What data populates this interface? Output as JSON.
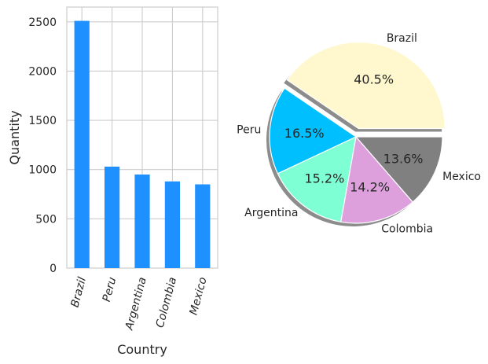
{
  "chart_data": [
    {
      "type": "bar",
      "categories": [
        "Brazil",
        "Peru",
        "Argentina",
        "Colombia",
        "Mexico"
      ],
      "values": [
        2510,
        1030,
        950,
        880,
        850
      ],
      "xlabel": "Country",
      "ylabel": "Quantity",
      "ylim": [
        0,
        2650
      ],
      "yticks": [
        0,
        500,
        1000,
        1500,
        2000,
        2500
      ],
      "grid": true,
      "colors": {
        "bar": "#1e90ff",
        "grid": "#cccccc",
        "spine": "#cccccc"
      }
    },
    {
      "type": "pie",
      "labels": [
        "Brazil",
        "Peru",
        "Argentina",
        "Colombia",
        "Mexico"
      ],
      "values": [
        40.5,
        16.5,
        15.2,
        14.2,
        13.6
      ],
      "percent_labels": [
        "40.5%",
        "16.5%",
        "15.2%",
        "14.2%",
        "13.6%"
      ],
      "colors": [
        "#fff8cf",
        "#00bfff",
        "#7fffd4",
        "#dda0dd",
        "#808080"
      ],
      "exploded": "Brazil",
      "shadow": true
    }
  ]
}
